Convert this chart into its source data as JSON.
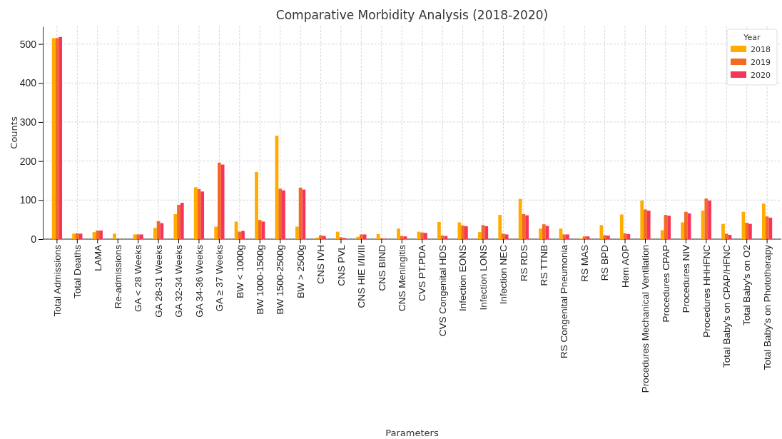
{
  "chart_data": {
    "type": "bar",
    "title": "Comparative Morbidity Analysis (2018-2020)",
    "xlabel": "Parameters",
    "ylabel": "Counts",
    "legend_title": "Year",
    "categories": [
      "Total Admissions",
      "Total Deaths",
      "LAMA",
      "Re-admissions",
      "GA < 28 Weeks",
      "GA 28-31 Weeks",
      "GA 32-34 Weeks",
      "GA 34-36 Weeks",
      "GA ≥ 37 Weeks",
      "BW < 1000g",
      "BW 1000-1500g",
      "BW 1500-2500g",
      "BW > 2500g",
      "CNS IVH",
      "CNS PVL",
      "CNS HIE I/II/III",
      "CNS BIND",
      "CNS Meningitis",
      "CVS PT.PDA",
      "CVS Congenital HDS",
      "Infection EONS",
      "Infection LONS",
      "Infection NEC",
      "RS RDS",
      "RS TTNB",
      "RS Congenital Pneumonia",
      "RS MAS",
      "RS BPD",
      "Hem AOP",
      "Procedures Mechanical Ventilation",
      "Procedures CPAP",
      "Procedures NIV",
      "Procedures HHHFNC",
      "Total Baby's on CPAP/HFNC",
      "Total Baby's on O2",
      "Total Baby's on Phototherapy"
    ],
    "series": [
      {
        "name": "2018",
        "color": "#ffab00",
        "values": [
          515,
          14,
          18,
          14,
          12,
          29,
          64,
          133,
          32,
          45,
          172,
          265,
          32,
          4,
          19,
          6,
          13,
          27,
          19,
          44,
          43,
          18,
          62,
          103,
          27,
          27,
          2,
          36,
          63,
          99,
          23,
          43,
          73,
          39,
          70,
          91
        ]
      },
      {
        "name": "2019",
        "color": "#f36a22",
        "values": [
          515,
          15,
          22,
          0,
          12,
          46,
          88,
          128,
          196,
          19,
          49,
          129,
          132,
          10,
          5,
          12,
          2,
          8,
          17,
          9,
          35,
          36,
          14,
          64,
          38,
          12,
          7,
          10,
          15,
          76,
          62,
          70,
          104,
          14,
          42,
          58
        ]
      },
      {
        "name": "2020",
        "color": "#f7355a",
        "values": [
          518,
          14,
          22,
          0,
          12,
          41,
          93,
          122,
          191,
          21,
          45,
          125,
          127,
          8,
          3,
          12,
          1,
          7,
          16,
          8,
          33,
          33,
          12,
          61,
          34,
          12,
          7,
          9,
          13,
          73,
          60,
          66,
          99,
          11,
          39,
          55
        ]
      }
    ],
    "ylim": [
      0,
      545
    ],
    "yticks": [
      0,
      100,
      200,
      300,
      400,
      500
    ],
    "grid": true,
    "legend": "top right"
  }
}
